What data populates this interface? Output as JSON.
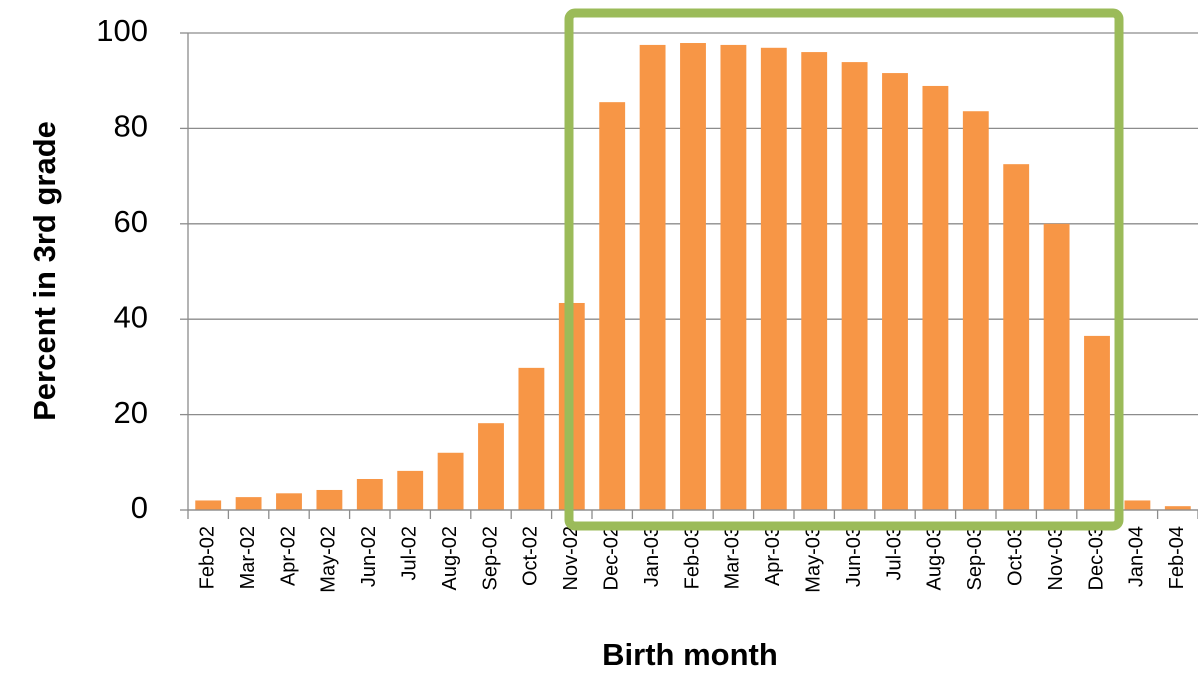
{
  "chart_data": {
    "type": "bar",
    "x_label": "Birth month",
    "y_label": "Percent in 3rd grade",
    "categories": [
      "Feb-02",
      "Mar-02",
      "Apr-02",
      "May-02",
      "Jun-02",
      "Jul-02",
      "Aug-02",
      "Sep-02",
      "Oct-02",
      "Nov-02",
      "Dec-02",
      "Jan-03",
      "Feb-03",
      "Mar-03",
      "Apr-03",
      "May-03",
      "Jun-03",
      "Jul-03",
      "Aug-03",
      "Sep-03",
      "Oct-03",
      "Nov-03",
      "Dec-03",
      "Jan-04",
      "Feb-04"
    ],
    "values": [
      2,
      2.7,
      3.5,
      4.2,
      6.5,
      8.2,
      12,
      18.2,
      29.8,
      43.4,
      85.5,
      97.5,
      97.9,
      97.5,
      96.9,
      96,
      93.9,
      91.6,
      88.9,
      83.6,
      72.5,
      60,
      36.5,
      2,
      0.8
    ],
    "color": "#f79646",
    "ylim": [
      0,
      100
    ],
    "yticks": [
      0,
      20,
      40,
      60,
      80,
      100
    ],
    "grid": true
  }
}
